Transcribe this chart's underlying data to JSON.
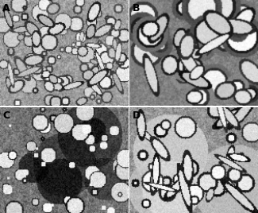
{
  "labels": [
    "A",
    "B",
    "C",
    "D"
  ],
  "figure_width": 3.25,
  "figure_height": 2.68,
  "dpi": 100,
  "background_color": "#ffffff",
  "label_fontsize": 9,
  "label_color": "black",
  "label_fontweight": "bold",
  "wspace": 0.01,
  "hspace": 0.01
}
